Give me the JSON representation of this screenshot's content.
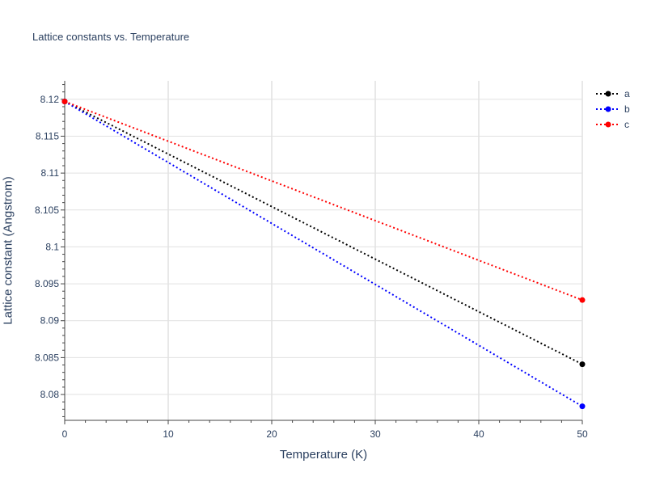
{
  "chart_data": {
    "type": "line",
    "title": "Lattice constants vs. Temperature",
    "xlabel": "Temperature (K)",
    "ylabel": "Lattice constant (Angstrom)",
    "xlim": [
      0,
      50
    ],
    "ylim": [
      8.0765,
      8.1225
    ],
    "xticks": [
      0,
      10,
      20,
      30,
      40,
      50
    ],
    "yticks": [
      8.08,
      8.085,
      8.09,
      8.095,
      8.1,
      8.105,
      8.11,
      8.115,
      8.12
    ],
    "ytick_labels": [
      "8.08",
      "8.085",
      "8.09",
      "8.095",
      "8.1",
      "8.105",
      "8.11",
      "8.115",
      "8.12"
    ],
    "grid": true,
    "legend_position": "top-right",
    "series": [
      {
        "name": "a",
        "color": "#000000",
        "line_style": "dotted",
        "x": [
          0,
          50
        ],
        "y": [
          8.1197,
          8.0841
        ]
      },
      {
        "name": "b",
        "color": "#0000ff",
        "line_style": "dotted",
        "x": [
          0,
          50
        ],
        "y": [
          8.1197,
          8.0784
        ]
      },
      {
        "name": "c",
        "color": "#ff0000",
        "line_style": "dotted",
        "x": [
          0,
          50
        ],
        "y": [
          8.1197,
          8.0928
        ]
      }
    ]
  }
}
